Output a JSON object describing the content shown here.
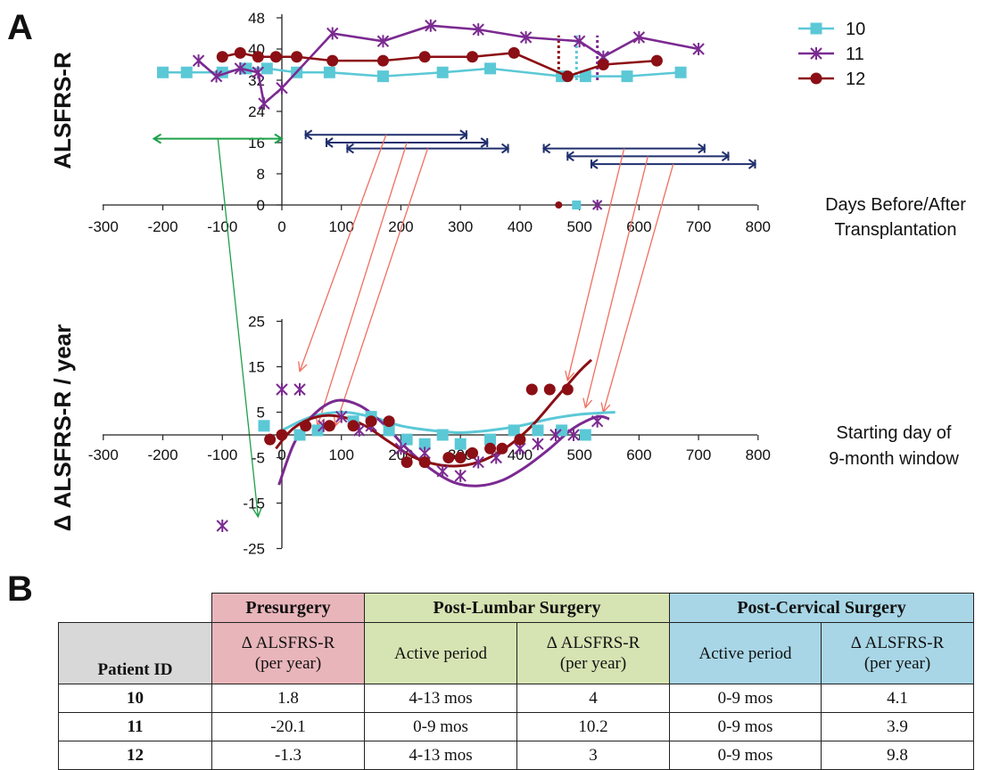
{
  "panel_labels": {
    "a": "A",
    "b": "B"
  },
  "colors": {
    "p10": "#5bc8d6",
    "p11": "#7b2a91",
    "p12": "#8b0f14",
    "green": "#1fa04a",
    "navy": "#1f2f6e",
    "red": "#ef6f5f"
  },
  "chart_data": [
    {
      "type": "line",
      "ylabel": "ALSFRS-R",
      "xlabel": "Days Before/After Transplantation",
      "xlim": [
        -300,
        800
      ],
      "ylim": [
        0,
        48
      ],
      "x_ticks": [
        "-300",
        "-200",
        "-100",
        "0",
        "100",
        "200",
        "300",
        "400",
        "500",
        "600",
        "700",
        "800"
      ],
      "y_ticks": [
        "0",
        "8",
        "16",
        "24",
        "32",
        "40",
        "48"
      ],
      "legend": {
        "position": "top-right",
        "entries": [
          "10",
          "11",
          "12"
        ]
      },
      "series": [
        {
          "name": "10",
          "points": [
            [
              -200,
              34
            ],
            [
              -160,
              34
            ],
            [
              -100,
              34
            ],
            [
              -60,
              35
            ],
            [
              -25,
              35
            ],
            [
              25,
              34
            ],
            [
              80,
              34
            ],
            [
              170,
              33
            ],
            [
              270,
              34
            ],
            [
              350,
              35
            ],
            [
              470,
              33
            ],
            [
              510,
              33
            ],
            [
              580,
              33
            ],
            [
              670,
              34
            ]
          ]
        },
        {
          "name": "11",
          "points": [
            [
              -140,
              37
            ],
            [
              -110,
              33
            ],
            [
              -70,
              35
            ],
            [
              -40,
              34
            ],
            [
              -30,
              26
            ],
            [
              0,
              30
            ],
            [
              85,
              44
            ],
            [
              170,
              42
            ],
            [
              250,
              46
            ],
            [
              330,
              45
            ],
            [
              410,
              43
            ],
            [
              500,
              42
            ],
            [
              540,
              38
            ],
            [
              600,
              43
            ],
            [
              700,
              40
            ]
          ]
        },
        {
          "name": "12",
          "points": [
            [
              -100,
              38
            ],
            [
              -70,
              39
            ],
            [
              -40,
              38
            ],
            [
              -10,
              38
            ],
            [
              25,
              38
            ],
            [
              85,
              37
            ],
            [
              170,
              37
            ],
            [
              240,
              38
            ],
            [
              320,
              38
            ],
            [
              390,
              39
            ],
            [
              480,
              33
            ],
            [
              540,
              36
            ],
            [
              630,
              37
            ]
          ]
        }
      ],
      "surgery_dotted_lines": [
        {
          "series": "12",
          "x": 465
        },
        {
          "series": "10",
          "x": 495
        },
        {
          "series": "11",
          "x": 530
        }
      ],
      "axis_markers": [
        {
          "series": "12",
          "x": 465,
          "y": 0
        },
        {
          "series": "10",
          "x": 495,
          "y": 0
        },
        {
          "series": "11",
          "x": 530,
          "y": 0
        }
      ],
      "windows": [
        {
          "start": -215,
          "end": 0,
          "y": 17,
          "color": "green"
        },
        {
          "start": 40,
          "end": 310,
          "y": 18,
          "color": "navy"
        },
        {
          "start": 75,
          "end": 345,
          "y": 16,
          "color": "navy"
        },
        {
          "start": 110,
          "end": 380,
          "y": 14.5,
          "color": "navy"
        },
        {
          "start": 440,
          "end": 710,
          "y": 14.5,
          "color": "navy"
        },
        {
          "start": 480,
          "end": 750,
          "y": 12.5,
          "color": "navy"
        },
        {
          "start": 520,
          "end": 795,
          "y": 10.5,
          "color": "navy"
        }
      ]
    },
    {
      "type": "scatter",
      "ylabel": "Δ ALSFRS-R / year",
      "xlabel": "Starting day of 9-month window",
      "xlim": [
        -300,
        800
      ],
      "ylim": [
        -25,
        25
      ],
      "x_ticks": [
        "-300",
        "-200",
        "-100",
        "0",
        "100",
        "200",
        "300",
        "400",
        "500",
        "600",
        "700",
        "800"
      ],
      "y_ticks": [
        "25",
        "15",
        "5",
        "-5",
        "-15",
        "-25"
      ],
      "series": [
        {
          "name": "10",
          "points": [
            [
              -30,
              2
            ],
            [
              30,
              0
            ],
            [
              60,
              1
            ],
            [
              120,
              3
            ],
            [
              150,
              4
            ],
            [
              180,
              1
            ],
            [
              210,
              -1
            ],
            [
              240,
              -2
            ],
            [
              270,
              0
            ],
            [
              300,
              -2
            ],
            [
              350,
              -1
            ],
            [
              390,
              1
            ],
            [
              430,
              1
            ],
            [
              470,
              1
            ],
            [
              510,
              0
            ]
          ]
        },
        {
          "name": "11",
          "points": [
            [
              -100,
              -20
            ],
            [
              0,
              10
            ],
            [
              30,
              10
            ],
            [
              70,
              2
            ],
            [
              100,
              4
            ],
            [
              130,
              1
            ],
            [
              150,
              2
            ],
            [
              200,
              -3
            ],
            [
              240,
              -4
            ],
            [
              270,
              -8
            ],
            [
              300,
              -9
            ],
            [
              330,
              -6
            ],
            [
              360,
              -5
            ],
            [
              400,
              -3
            ],
            [
              430,
              -2
            ],
            [
              460,
              0
            ],
            [
              490,
              0
            ],
            [
              530,
              3
            ]
          ]
        },
        {
          "name": "12",
          "points": [
            [
              -20,
              -1
            ],
            [
              0,
              0
            ],
            [
              40,
              2
            ],
            [
              80,
              2
            ],
            [
              120,
              2
            ],
            [
              150,
              3
            ],
            [
              180,
              3
            ],
            [
              210,
              -6
            ],
            [
              240,
              -6
            ],
            [
              280,
              -5
            ],
            [
              300,
              -5
            ],
            [
              320,
              -4
            ],
            [
              350,
              -3
            ],
            [
              370,
              -3
            ],
            [
              400,
              -1
            ],
            [
              420,
              10
            ],
            [
              450,
              10
            ],
            [
              480,
              10
            ]
          ]
        }
      ],
      "trend_curves": [
        {
          "series": "10",
          "points": [
            [
              0,
              1
            ],
            [
              50,
              4
            ],
            [
              100,
              5
            ],
            [
              150,
              4
            ],
            [
              200,
              2
            ],
            [
              250,
              1
            ],
            [
              300,
              0.5
            ],
            [
              350,
              1
            ],
            [
              400,
              2
            ],
            [
              450,
              3.5
            ],
            [
              500,
              4.5
            ],
            [
              560,
              5
            ]
          ]
        },
        {
          "series": "11",
          "points": [
            [
              -5,
              -11
            ],
            [
              20,
              -2
            ],
            [
              50,
              4
            ],
            [
              90,
              7.5
            ],
            [
              130,
              6.5
            ],
            [
              170,
              2.5
            ],
            [
              210,
              -3
            ],
            [
              250,
              -7.5
            ],
            [
              290,
              -10.5
            ],
            [
              330,
              -11.2
            ],
            [
              370,
              -10
            ],
            [
              410,
              -7
            ],
            [
              450,
              -3
            ],
            [
              490,
              1.5
            ],
            [
              530,
              4
            ],
            [
              550,
              3.5
            ]
          ]
        },
        {
          "series": "12",
          "points": [
            [
              -10,
              -3
            ],
            [
              20,
              1.5
            ],
            [
              60,
              4
            ],
            [
              100,
              4
            ],
            [
              140,
              2
            ],
            [
              180,
              -1.5
            ],
            [
              220,
              -4.8
            ],
            [
              260,
              -6.5
            ],
            [
              300,
              -6.8
            ],
            [
              340,
              -5.5
            ],
            [
              380,
              -2.5
            ],
            [
              420,
              2
            ],
            [
              460,
              8
            ],
            [
              500,
              14
            ],
            [
              520,
              16.5
            ]
          ]
        }
      ]
    }
  ],
  "table": {
    "col_groups": [
      "Presurgery",
      "Post-Lumbar Surgery",
      "Post-Cervical Surgery"
    ],
    "patient_id_header": "Patient ID",
    "delta_header_line1": "Δ ALSFRS-R",
    "delta_header_line2": "(per year)",
    "active_period_header": "Active period",
    "rows": [
      {
        "id": "10",
        "pre": "1.8",
        "lumbar_period": "4-13 mos",
        "lumbar_delta": "4",
        "cervical_period": "0-9 mos",
        "cervical_delta": "4.1"
      },
      {
        "id": "11",
        "pre": "-20.1",
        "lumbar_period": "0-9 mos",
        "lumbar_delta": "10.2",
        "cervical_period": "0-9 mos",
        "cervical_delta": "3.9"
      },
      {
        "id": "12",
        "pre": "-1.3",
        "lumbar_period": "4-13 mos",
        "lumbar_delta": "3",
        "cervical_period": "0-9 mos",
        "cervical_delta": "9.8"
      }
    ]
  }
}
